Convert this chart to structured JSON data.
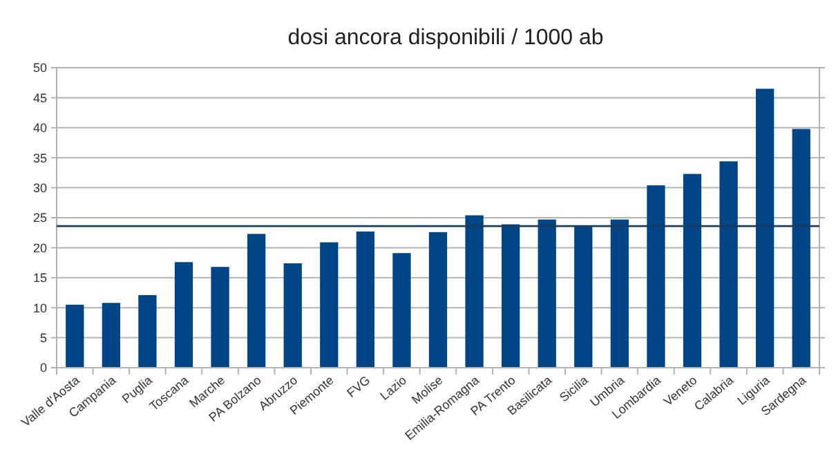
{
  "chart_data": {
    "type": "bar",
    "title": "dosi ancora disponibili / 1000 ab",
    "categories": [
      "Valle d'Aosta",
      "Campania",
      "Puglia",
      "Toscana",
      "Marche",
      "PA Bolzano",
      "Abruzzo",
      "Piemonte",
      "FVG",
      "Lazio",
      "Molise",
      "Emilia-Romagna",
      "PA Trento",
      "Basilicata",
      "Sicilia",
      "Umbria",
      "Lombardia",
      "Veneto",
      "Calabria",
      "Liguria",
      "Sardegna"
    ],
    "values": [
      10.5,
      10.8,
      12.1,
      17.6,
      16.8,
      22.3,
      17.4,
      20.9,
      22.7,
      19.1,
      22.6,
      25.4,
      23.9,
      24.7,
      23.7,
      24.7,
      30.4,
      32.3,
      34.4,
      46.5,
      39.8
    ],
    "color": "#004586",
    "ylim": [
      0,
      50
    ],
    "yticks": [
      0,
      5,
      10,
      15,
      20,
      25,
      30,
      35,
      40,
      45,
      50
    ],
    "grid": "y",
    "ref_lines": [
      {
        "axis": "y",
        "value": 23.6,
        "color": "#1a3a5c"
      }
    ]
  }
}
